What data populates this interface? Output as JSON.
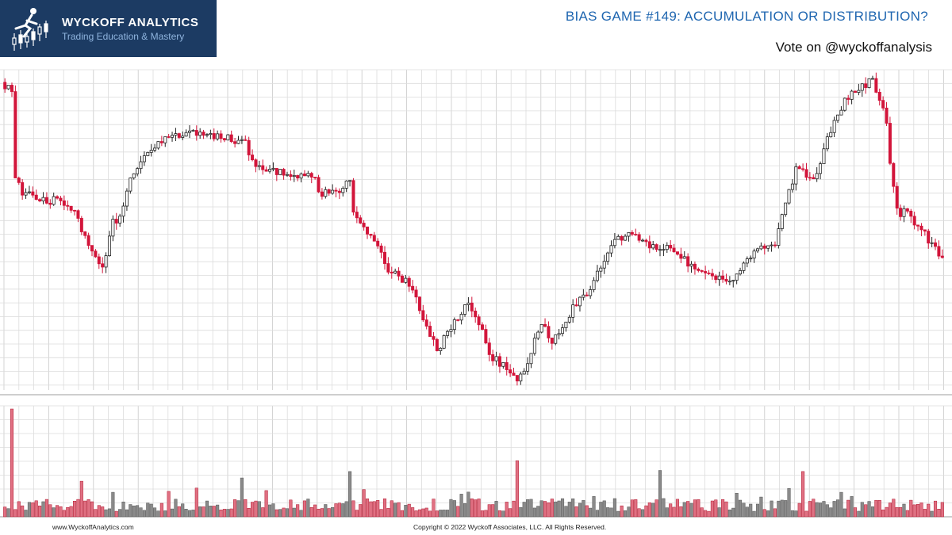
{
  "header": {
    "brand_name": "WYCKOFF ANALYTICS",
    "brand_tagline": "Trading Education & Mastery",
    "title": "BIAS GAME #149: ACCUMULATION OR DISTRIBUTION?",
    "subtitle": "Vote on @wyckoffanalysis"
  },
  "footer": {
    "website": "www.WyckoffAnalytics.com",
    "copyright": "Copyright © 2022 Wyckoff Associates, LLC. All Rights Reserved."
  },
  "colors": {
    "brand_bg": "#1c3b63",
    "title_blue": "#1f66b0",
    "down_bar": "#d2153a",
    "up_bar": "#222222",
    "down_volume": "#e07082",
    "up_volume": "#8a8a8a",
    "grid": "#dcdcdc"
  },
  "chart_data": {
    "type": "candlestick",
    "title": "",
    "xlabel": "",
    "ylabel": "",
    "axes_labels_shown": false,
    "grid": true,
    "price_scale_ylim": [
      0,
      100
    ],
    "volume_scale_ylim": [
      0,
      100
    ],
    "bar_count": 270,
    "price_path": [
      [
        0,
        99
      ],
      [
        3,
        97
      ],
      [
        4,
        66
      ],
      [
        6,
        63
      ],
      [
        20,
        58
      ],
      [
        27,
        40
      ],
      [
        29,
        38
      ],
      [
        32,
        53
      ],
      [
        33,
        52
      ],
      [
        38,
        70
      ],
      [
        48,
        82
      ],
      [
        58,
        82
      ],
      [
        70,
        79
      ],
      [
        73,
        71
      ],
      [
        83,
        68
      ],
      [
        90,
        69
      ],
      [
        91,
        62
      ],
      [
        97,
        64
      ],
      [
        100,
        67
      ],
      [
        101,
        55
      ],
      [
        108,
        45
      ],
      [
        111,
        37
      ],
      [
        117,
        33
      ],
      [
        125,
        10
      ],
      [
        130,
        20
      ],
      [
        134,
        26
      ],
      [
        137,
        20
      ],
      [
        140,
        9
      ],
      [
        146,
        3
      ],
      [
        148,
        0
      ],
      [
        152,
        10
      ],
      [
        155,
        20
      ],
      [
        158,
        13
      ],
      [
        164,
        24
      ],
      [
        170,
        33
      ],
      [
        175,
        45
      ],
      [
        180,
        50
      ],
      [
        182,
        48
      ],
      [
        185,
        46
      ],
      [
        193,
        44
      ],
      [
        198,
        38
      ],
      [
        200,
        36
      ],
      [
        208,
        33
      ],
      [
        212,
        37
      ],
      [
        217,
        45
      ],
      [
        222,
        46
      ],
      [
        228,
        71
      ],
      [
        233,
        66
      ],
      [
        237,
        80
      ],
      [
        242,
        93
      ],
      [
        250,
        100
      ],
      [
        253,
        90
      ],
      [
        254,
        84
      ],
      [
        255,
        72
      ],
      [
        257,
        56
      ],
      [
        260,
        56
      ],
      [
        270,
        41
      ],
      [
        273,
        43
      ]
    ],
    "volume_spikes": {
      "2": 100,
      "22": 33,
      "68": 36,
      "99": 42,
      "147": 52,
      "188": 43,
      "229": 42
    }
  }
}
